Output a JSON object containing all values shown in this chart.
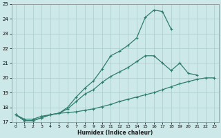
{
  "xlabel": "Humidex (Indice chaleur)",
  "x_values": [
    0,
    1,
    2,
    3,
    4,
    5,
    6,
    7,
    8,
    9,
    10,
    11,
    12,
    13,
    14,
    15,
    16,
    17,
    18,
    19,
    20,
    21,
    22,
    23
  ],
  "line1": [
    17.5,
    17.1,
    17.1,
    17.3,
    17.5,
    17.6,
    18.0,
    18.7,
    19.3,
    19.8,
    20.6,
    21.5,
    21.8,
    22.2,
    22.7,
    24.1,
    24.6,
    24.5,
    23.3,
    null,
    null,
    null,
    null,
    null
  ],
  "line2": [
    17.5,
    17.1,
    17.1,
    17.3,
    17.5,
    17.6,
    17.9,
    18.4,
    18.9,
    19.2,
    19.7,
    20.1,
    20.4,
    20.7,
    21.1,
    21.5,
    21.5,
    21.0,
    20.5,
    21.0,
    20.3,
    20.2,
    null,
    null
  ],
  "line3": [
    17.5,
    17.2,
    17.2,
    17.4,
    17.5,
    17.6,
    17.65,
    17.7,
    17.8,
    17.9,
    18.05,
    18.2,
    18.4,
    18.55,
    18.7,
    18.85,
    19.0,
    19.2,
    19.4,
    19.6,
    19.75,
    19.9,
    20.0,
    20.0
  ],
  "color": "#2e7d6e",
  "bg_color": "#cce8e8",
  "grid_color": "#aacccc",
  "ylim": [
    17,
    25
  ],
  "yticks": [
    17,
    18,
    19,
    20,
    21,
    22,
    23,
    24,
    25
  ],
  "xlim": [
    -0.5,
    23.5
  ],
  "xticks": [
    0,
    1,
    2,
    3,
    4,
    5,
    6,
    7,
    8,
    9,
    10,
    11,
    12,
    13,
    14,
    15,
    16,
    17,
    18,
    19,
    20,
    21,
    22,
    23
  ]
}
